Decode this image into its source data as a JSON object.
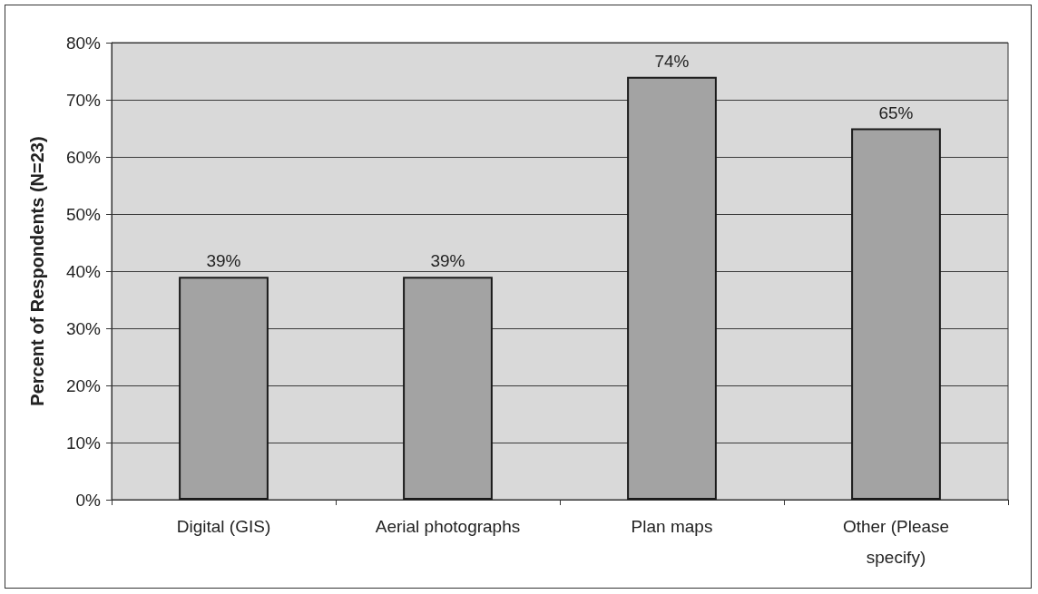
{
  "chart_data": {
    "type": "bar",
    "categories": [
      "Digital (GIS)",
      "Aerial photographs",
      "Plan maps",
      "Other (Please specify)"
    ],
    "values": [
      39,
      39,
      74,
      65
    ],
    "color": "#a3a3a3",
    "value_labels": [
      "39%",
      "39%",
      "74%",
      "65%"
    ],
    "ylabel": "Percent of Respondents (N=23)",
    "ylim": [
      0,
      80
    ],
    "yticks": [
      {
        "value": 0,
        "label": "0%"
      },
      {
        "value": 10,
        "label": "10%"
      },
      {
        "value": 20,
        "label": "20%"
      },
      {
        "value": 30,
        "label": "30%"
      },
      {
        "value": 40,
        "label": "40%"
      },
      {
        "value": 50,
        "label": "50%"
      },
      {
        "value": 60,
        "label": "60%"
      },
      {
        "value": 70,
        "label": "70%"
      },
      {
        "value": 80,
        "label": "80%"
      }
    ],
    "grid": "y"
  }
}
